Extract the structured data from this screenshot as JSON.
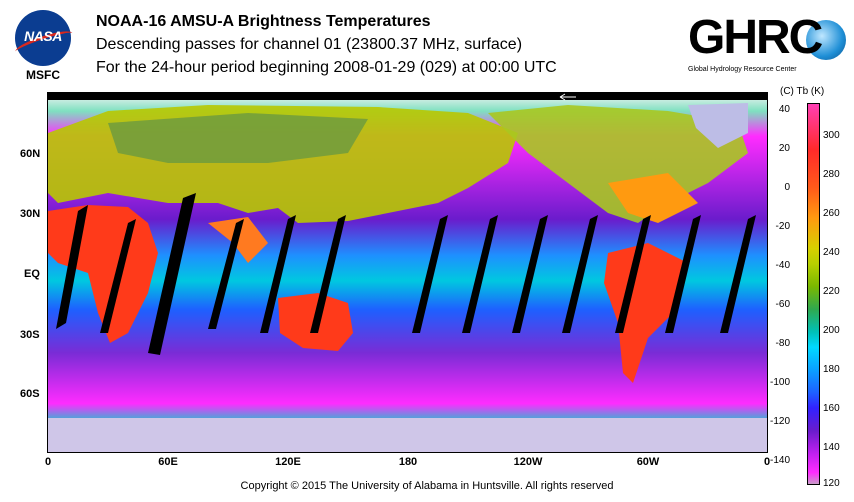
{
  "header": {
    "logo_left": "NASA",
    "logo_left_sub": "MSFC",
    "title": "NOAA-16 AMSU-A Brightness Temperatures",
    "subtitle": "Descending passes for channel 01 (23800.37 MHz, surface)",
    "period": "For the 24-hour period beginning 2008-01-29 (029) at 00:00 UTC",
    "logo_right": "GHRC",
    "logo_right_sub": "Global Hydrology Resource Center"
  },
  "map": {
    "lat_labels": [
      "60N",
      "30N",
      "EQ",
      "30S",
      "60S"
    ],
    "lon_labels": [
      "0",
      "60E",
      "120E",
      "180",
      "120W",
      "60W",
      "0"
    ]
  },
  "colorbar": {
    "header": "(C)  Tb  (K)",
    "celsius_ticks": [
      "40",
      "20",
      "0",
      "-20",
      "-40",
      "-60",
      "-80",
      "-100",
      "-120",
      "-140"
    ],
    "kelvin_ticks": [
      "300",
      "280",
      "260",
      "240",
      "220",
      "200",
      "180",
      "160",
      "140",
      "120"
    ],
    "colors": [
      "#ff3fb4",
      "#ff2a2a",
      "#ff9a10",
      "#d7d000",
      "#2fa84f",
      "#00d8ff",
      "#1e60ff",
      "#6a1ccc",
      "#ff2cff"
    ]
  },
  "footer": {
    "copyright": "Copyright © 2015 The University of Alabama in Huntsville.  All rights reserved"
  }
}
